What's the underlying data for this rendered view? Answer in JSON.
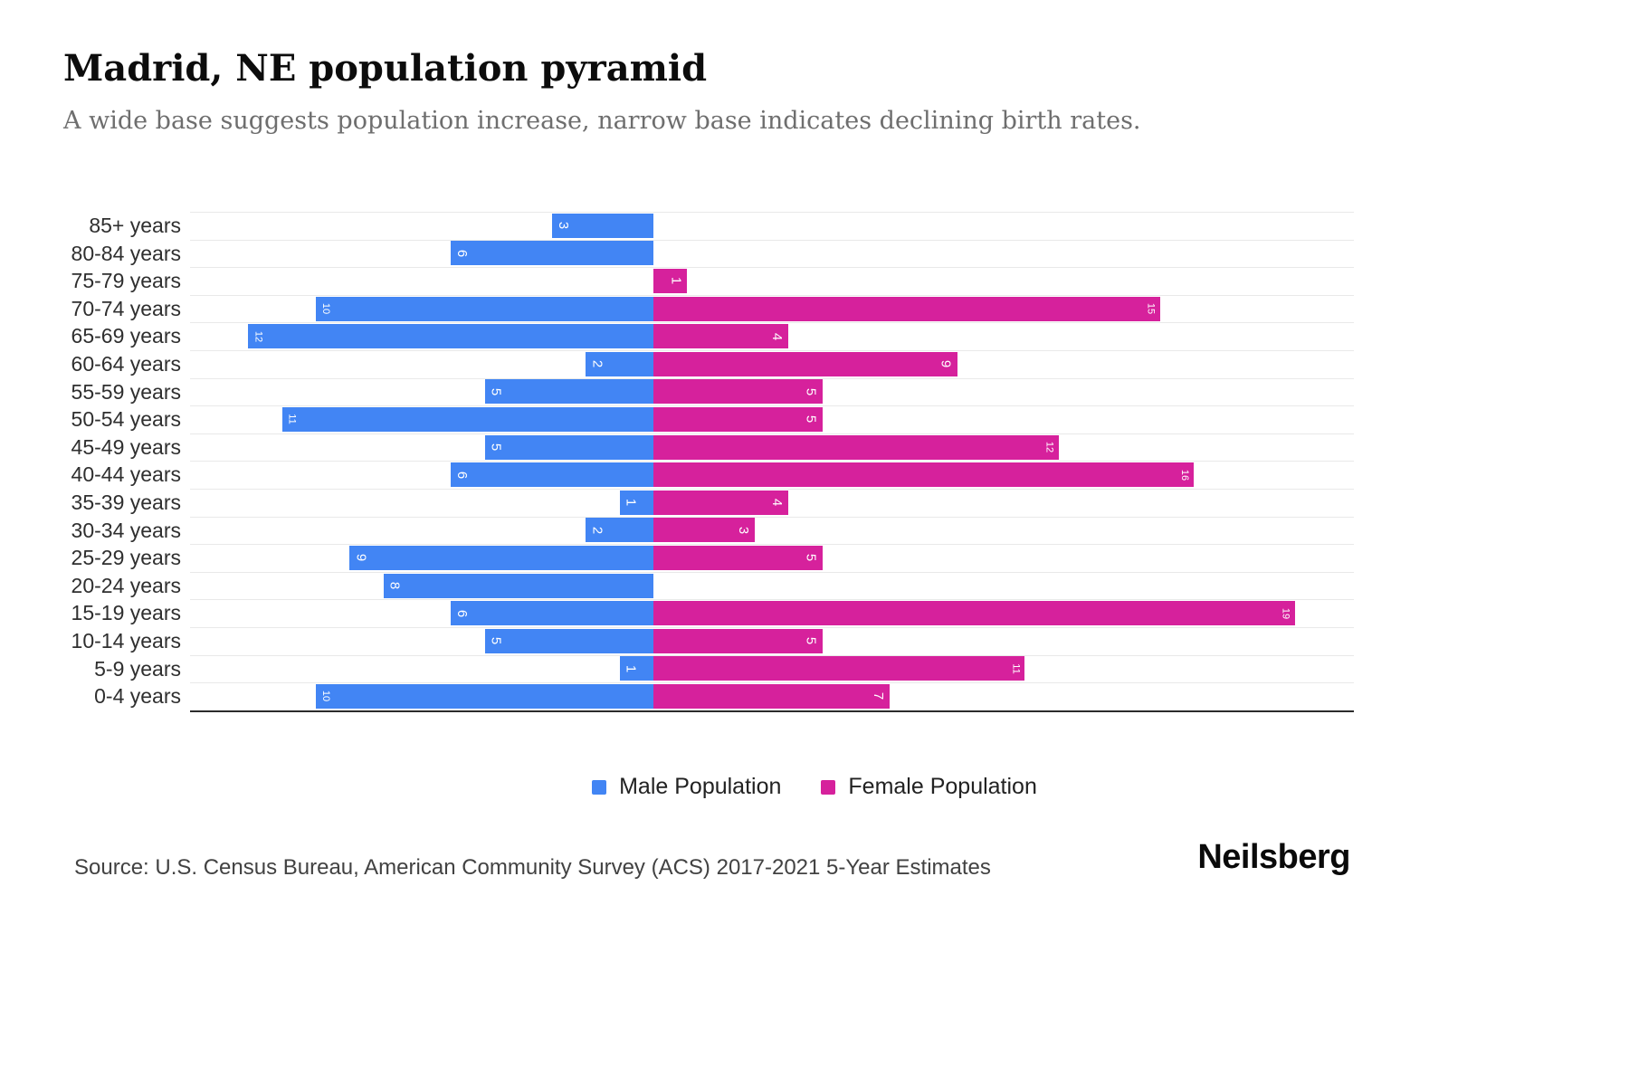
{
  "title": "Madrid, NE population pyramid",
  "subtitle": "A wide base suggests population increase, narrow base indicates declining birth rates.",
  "source": "Source: U.S. Census Bureau, American Community Survey (ACS) 2017-2021 5-Year Estimates",
  "logo": "Neilsberg",
  "legend": {
    "male": "Male Population",
    "female": "Female Population"
  },
  "colors": {
    "male": "#4285f4",
    "female": "#d6219c"
  },
  "chart_data": {
    "type": "bar",
    "subtype": "population-pyramid",
    "orientation": "horizontal",
    "title": "Madrid, NE population pyramid",
    "xlabel": "",
    "ylabel": "",
    "grid": "horizontal",
    "legend_position": "bottom",
    "axis_range_left_male": 14,
    "axis_range_right_female": 21,
    "categories": [
      "85+ years",
      "80-84 years",
      "75-79 years",
      "70-74 years",
      "65-69 years",
      "60-64 years",
      "55-59 years",
      "50-54 years",
      "45-49 years",
      "40-44 years",
      "35-39 years",
      "30-34 years",
      "25-29 years",
      "20-24 years",
      "15-19 years",
      "10-14 years",
      "5-9 years",
      "0-4 years"
    ],
    "series": [
      {
        "name": "Male Population",
        "side": "left",
        "values": [
          3,
          6,
          0,
          10,
          12,
          2,
          5,
          11,
          5,
          6,
          1,
          2,
          9,
          8,
          6,
          5,
          1,
          10
        ]
      },
      {
        "name": "Female Population",
        "side": "right",
        "values": [
          0,
          0,
          1,
          15,
          4,
          9,
          5,
          5,
          12,
          16,
          4,
          3,
          5,
          0,
          19,
          5,
          11,
          7
        ]
      }
    ]
  }
}
